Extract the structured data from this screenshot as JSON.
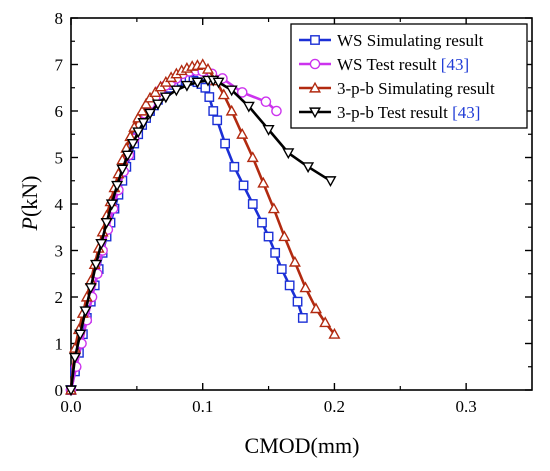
{
  "chart_data": {
    "type": "line",
    "title": "",
    "xlabel": "CMOD(mm)",
    "ylabel_italic": "P",
    "ylabel_rest": "(kN)",
    "xlim": [
      0,
      0.35
    ],
    "ylim": [
      0,
      8
    ],
    "xticks": [
      "0.0",
      "0.1",
      "0.2",
      "0.3"
    ],
    "xtick_values": [
      0,
      0.1,
      0.2,
      0.3
    ],
    "yticks": [
      "0",
      "1",
      "2",
      "3",
      "4",
      "5",
      "6",
      "7",
      "8"
    ],
    "ytick_values": [
      0,
      1,
      2,
      3,
      4,
      5,
      6,
      7,
      8
    ],
    "grid": false,
    "legend_position": "top-right",
    "series": [
      {
        "name": "WS Simulating result",
        "name_ref": "",
        "color": "#1b2fd6",
        "marker": "square",
        "x": [
          0.0,
          0.003,
          0.006,
          0.009,
          0.012,
          0.015,
          0.018,
          0.021,
          0.024,
          0.027,
          0.03,
          0.033,
          0.036,
          0.039,
          0.042,
          0.045,
          0.048,
          0.051,
          0.054,
          0.057,
          0.06,
          0.063,
          0.066,
          0.069,
          0.072,
          0.075,
          0.078,
          0.081,
          0.084,
          0.087,
          0.09,
          0.093,
          0.096,
          0.099,
          0.102,
          0.105,
          0.108,
          0.111,
          0.117,
          0.124,
          0.131,
          0.138,
          0.145,
          0.15,
          0.155,
          0.16,
          0.166,
          0.172,
          0.176
        ],
        "y": [
          0.0,
          0.4,
          0.8,
          1.2,
          1.55,
          1.9,
          2.25,
          2.6,
          2.95,
          3.3,
          3.6,
          3.9,
          4.2,
          4.5,
          4.8,
          5.05,
          5.3,
          5.5,
          5.7,
          5.85,
          6.0,
          6.12,
          6.24,
          6.34,
          6.43,
          6.5,
          6.56,
          6.6,
          6.64,
          6.66,
          6.67,
          6.65,
          6.62,
          6.58,
          6.5,
          6.3,
          6.0,
          5.8,
          5.3,
          4.8,
          4.4,
          4.0,
          3.6,
          3.3,
          2.95,
          2.6,
          2.25,
          1.9,
          1.55
        ]
      },
      {
        "name": "WS Test result ",
        "name_ref": "[43]",
        "color": "#cc33ee",
        "marker": "circle",
        "x": [
          0.0,
          0.004,
          0.008,
          0.012,
          0.016,
          0.02,
          0.024,
          0.028,
          0.032,
          0.036,
          0.04,
          0.044,
          0.048,
          0.052,
          0.056,
          0.06,
          0.064,
          0.068,
          0.072,
          0.076,
          0.08,
          0.085,
          0.09,
          0.095,
          0.1,
          0.107,
          0.115,
          0.13,
          0.148,
          0.156
        ],
        "y": [
          0.0,
          0.5,
          1.0,
          1.5,
          2.0,
          2.5,
          3.0,
          3.45,
          3.9,
          4.3,
          4.7,
          5.05,
          5.4,
          5.7,
          5.95,
          6.15,
          6.3,
          6.45,
          6.55,
          6.62,
          6.7,
          6.8,
          6.85,
          6.87,
          6.85,
          6.8,
          6.7,
          6.4,
          6.2,
          6.0
        ]
      },
      {
        "name": "3-p-b Simulating result",
        "name_ref": "",
        "color": "#b22a10",
        "marker": "triangle-up",
        "x": [
          0.0,
          0.003,
          0.006,
          0.009,
          0.012,
          0.015,
          0.018,
          0.021,
          0.024,
          0.027,
          0.03,
          0.033,
          0.036,
          0.039,
          0.042,
          0.045,
          0.048,
          0.051,
          0.054,
          0.057,
          0.06,
          0.064,
          0.068,
          0.072,
          0.076,
          0.08,
          0.084,
          0.088,
          0.092,
          0.096,
          0.1,
          0.104,
          0.11,
          0.116,
          0.122,
          0.13,
          0.138,
          0.146,
          0.154,
          0.162,
          0.17,
          0.178,
          0.186,
          0.193,
          0.2
        ],
        "y": [
          0.0,
          0.9,
          1.3,
          1.65,
          2.0,
          2.35,
          2.7,
          3.05,
          3.4,
          3.75,
          4.05,
          4.35,
          4.65,
          4.95,
          5.2,
          5.45,
          5.65,
          5.85,
          6.0,
          6.15,
          6.28,
          6.4,
          6.52,
          6.62,
          6.72,
          6.8,
          6.87,
          6.92,
          6.96,
          6.98,
          7.0,
          6.9,
          6.65,
          6.35,
          6.0,
          5.5,
          5.0,
          4.45,
          3.9,
          3.3,
          2.75,
          2.2,
          1.75,
          1.45,
          1.2
        ]
      },
      {
        "name": "3-p-b Test result ",
        "name_ref": "[43]",
        "color": "#000000",
        "marker": "triangle-down",
        "x": [
          0.0,
          0.003,
          0.007,
          0.011,
          0.015,
          0.019,
          0.023,
          0.027,
          0.031,
          0.035,
          0.039,
          0.043,
          0.047,
          0.051,
          0.055,
          0.06,
          0.066,
          0.072,
          0.08,
          0.088,
          0.096,
          0.104,
          0.108,
          0.112,
          0.122,
          0.135,
          0.15,
          0.165,
          0.18,
          0.197
        ],
        "y": [
          0.0,
          0.7,
          1.2,
          1.7,
          2.2,
          2.7,
          3.15,
          3.6,
          4.0,
          4.4,
          4.75,
          5.05,
          5.3,
          5.55,
          5.75,
          5.95,
          6.15,
          6.3,
          6.45,
          6.55,
          6.62,
          6.66,
          6.66,
          6.62,
          6.45,
          6.1,
          5.6,
          5.1,
          4.8,
          4.5
        ]
      }
    ]
  }
}
